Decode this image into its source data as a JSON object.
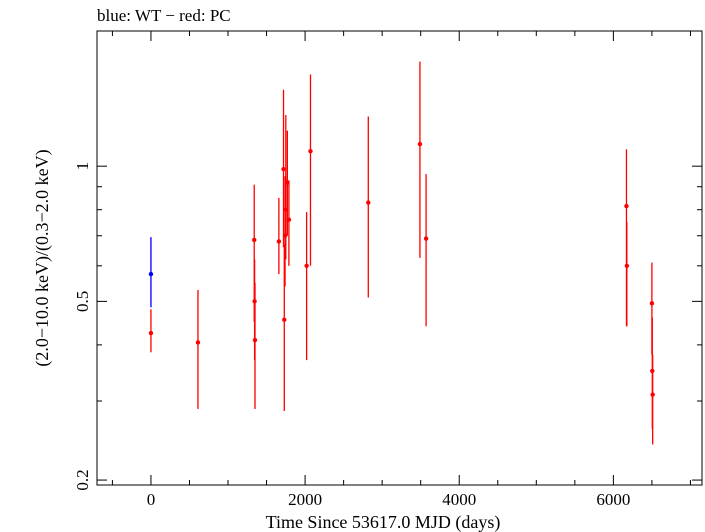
{
  "chart_data": {
    "type": "scatter",
    "title": "blue: WT − red: PC",
    "xlabel": "Time Since 53617.0 MJD (days)",
    "ylabel": "(2.0−10.0 keV)/(0.3−2.0 keV)",
    "xlim": [
      -700,
      7150
    ],
    "ylim": [
      0.195,
      2.0
    ],
    "yscale": "log",
    "xticks": [
      0,
      2000,
      4000,
      6000
    ],
    "xtick_labels": [
      "0",
      "2000",
      "4000",
      "6000"
    ],
    "yticks": [
      0.2,
      0.5,
      1
    ],
    "ytick_labels": [
      "0.2",
      "0.5",
      "1"
    ],
    "grid": false,
    "series": [
      {
        "name": "WT",
        "color": "#0000ff",
        "points": [
          {
            "x": 0,
            "y": 0.575,
            "ylo": 0.485,
            "yhi": 0.695
          }
        ]
      },
      {
        "name": "PC",
        "color": "#ff0000",
        "points": [
          {
            "x": 0,
            "y": 0.425,
            "ylo": 0.385,
            "yhi": 0.48
          },
          {
            "x": 610,
            "y": 0.405,
            "ylo": 0.288,
            "yhi": 0.53
          },
          {
            "x": 1340,
            "y": 0.685,
            "ylo": 0.45,
            "yhi": 0.91
          },
          {
            "x": 1345,
            "y": 0.5,
            "ylo": 0.37,
            "yhi": 0.62
          },
          {
            "x": 1350,
            "y": 0.41,
            "ylo": 0.288,
            "yhi": 0.55
          },
          {
            "x": 1660,
            "y": 0.68,
            "ylo": 0.575,
            "yhi": 0.85
          },
          {
            "x": 1720,
            "y": 0.985,
            "ylo": 0.66,
            "yhi": 1.48
          },
          {
            "x": 1730,
            "y": 0.455,
            "ylo": 0.285,
            "yhi": 0.67
          },
          {
            "x": 1740,
            "y": 0.7,
            "ylo": 0.54,
            "yhi": 0.95
          },
          {
            "x": 1750,
            "y": 0.8,
            "ylo": 0.62,
            "yhi": 1.3
          },
          {
            "x": 1770,
            "y": 0.92,
            "ylo": 0.7,
            "yhi": 1.2
          },
          {
            "x": 1790,
            "y": 0.76,
            "ylo": 0.6,
            "yhi": 0.93
          },
          {
            "x": 2020,
            "y": 0.6,
            "ylo": 0.37,
            "yhi": 0.79
          },
          {
            "x": 2070,
            "y": 1.08,
            "ylo": 0.6,
            "yhi": 1.6
          },
          {
            "x": 2820,
            "y": 0.83,
            "ylo": 0.51,
            "yhi": 1.29
          },
          {
            "x": 3490,
            "y": 1.12,
            "ylo": 0.625,
            "yhi": 1.71
          },
          {
            "x": 3570,
            "y": 0.69,
            "ylo": 0.44,
            "yhi": 0.96
          },
          {
            "x": 6170,
            "y": 0.815,
            "ylo": 0.44,
            "yhi": 1.09
          },
          {
            "x": 6175,
            "y": 0.6,
            "ylo": 0.44,
            "yhi": 0.75
          },
          {
            "x": 6500,
            "y": 0.495,
            "ylo": 0.38,
            "yhi": 0.61
          },
          {
            "x": 6505,
            "y": 0.35,
            "ylo": 0.26,
            "yhi": 0.46
          },
          {
            "x": 6510,
            "y": 0.31,
            "ylo": 0.24,
            "yhi": 0.38
          }
        ]
      }
    ]
  }
}
